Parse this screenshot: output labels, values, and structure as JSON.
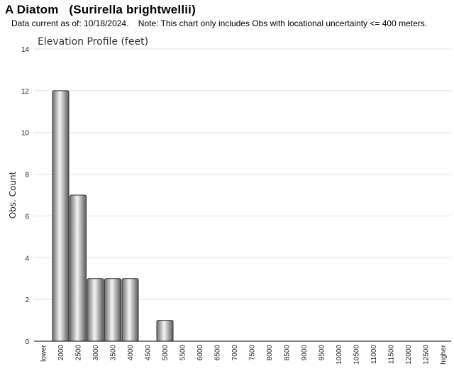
{
  "header": {
    "title": "A Diatom   (Surirella brightwellii)",
    "subtitle": "Data current as of: 10/18/2024.    Note: This chart only includes Obs with locational uncertainty <= 400 meters."
  },
  "chart_data": {
    "type": "bar",
    "title": "Elevation Profile (feet)",
    "xlabel": "",
    "ylabel": "Obs. Count",
    "ylim": [
      0,
      14
    ],
    "yticks": [
      0,
      2,
      4,
      6,
      8,
      10,
      12,
      14
    ],
    "grid": true,
    "categories": [
      "lower",
      "2000",
      "2500",
      "3000",
      "3500",
      "4000",
      "4500",
      "5000",
      "5500",
      "6000",
      "6500",
      "7000",
      "7500",
      "8000",
      "8500",
      "9000",
      "9500",
      "10000",
      "10500",
      "11000",
      "11500",
      "12000",
      "12500",
      "higher"
    ],
    "values": [
      0,
      12,
      7,
      3,
      3,
      3,
      0,
      1,
      0,
      0,
      0,
      0,
      0,
      0,
      0,
      0,
      0,
      0,
      0,
      0,
      0,
      0,
      0,
      0
    ]
  }
}
